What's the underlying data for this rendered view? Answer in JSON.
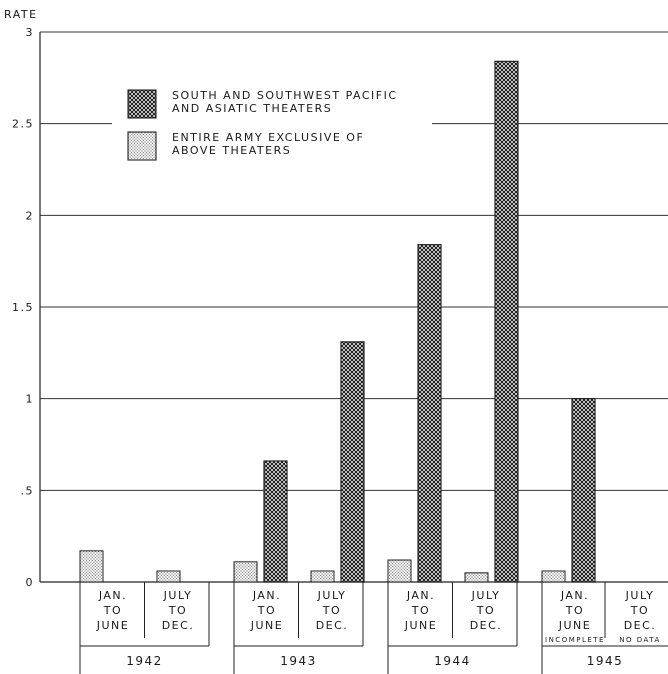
{
  "chart_data": {
    "type": "bar",
    "title": "",
    "ylabel": "RATE",
    "xlabel": "",
    "ylim": [
      0,
      3
    ],
    "yticks": [
      {
        "value": 0,
        "label": "0"
      },
      {
        "value": 0.5,
        "label": ".5"
      },
      {
        "value": 1,
        "label": "1"
      },
      {
        "value": 1.5,
        "label": "1.5"
      },
      {
        "value": 2,
        "label": "2"
      },
      {
        "value": 2.5,
        "label": "2.5"
      },
      {
        "value": 3,
        "label": "3"
      }
    ],
    "grid": true,
    "legend_position": "top-left",
    "periods": [
      {
        "line1": "JAN.",
        "line2": "TO",
        "line3": "JUNE",
        "note": ""
      },
      {
        "line1": "JULY",
        "line2": "TO",
        "line3": "DEC.",
        "note": ""
      },
      {
        "line1": "JAN.",
        "line2": "TO",
        "line3": "JUNE",
        "note": ""
      },
      {
        "line1": "JULY",
        "line2": "TO",
        "line3": "DEC.",
        "note": ""
      },
      {
        "line1": "JAN.",
        "line2": "TO",
        "line3": "JUNE",
        "note": ""
      },
      {
        "line1": "JULY",
        "line2": "TO",
        "line3": "DEC.",
        "note": ""
      },
      {
        "line1": "JAN.",
        "line2": "TO",
        "line3": "JUNE",
        "note": "INCOMPLETE"
      },
      {
        "line1": "JULY",
        "line2": "TO",
        "line3": "DEC.",
        "note": "NO DATA"
      }
    ],
    "years": [
      "1942",
      "1943",
      "1944",
      "1945"
    ],
    "series": [
      {
        "name": "SOUTH AND SOUTHWEST PACIFIC AND ASIATIC THEATERS",
        "legend_lines": [
          "SOUTH AND SOUTHWEST PACIFIC",
          "AND ASIATIC THEATERS"
        ],
        "pattern": "crosshatch",
        "values": [
          null,
          null,
          0.66,
          1.31,
          1.84,
          2.84,
          1.0,
          null
        ]
      },
      {
        "name": "ENTIRE ARMY EXCLUSIVE OF ABOVE THEATERS",
        "legend_lines": [
          "ENTIRE ARMY EXCLUSIVE OF",
          "ABOVE THEATERS"
        ],
        "pattern": "stipple",
        "values": [
          0.17,
          0.06,
          0.11,
          0.06,
          0.12,
          0.05,
          0.06,
          null
        ]
      }
    ],
    "colors": {
      "ink": "#1a1a1a",
      "paper": "#ffffff"
    }
  }
}
